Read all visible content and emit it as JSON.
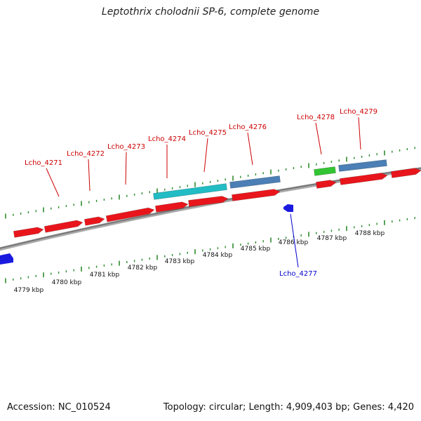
{
  "title": "Leptothrix cholodnii SP-6, complete genome",
  "footer": {
    "accession": "Accession: NC_010524",
    "summary": "Topology: circular; Length: 4,909,403 bp; Genes: 4,420"
  },
  "colors": {
    "backbone": "#808080",
    "tick": "#2e8b2e",
    "cds_forward": "#e8161c",
    "cds_reverse": "#1a1adf",
    "misc_feature": "#22bcc4",
    "steel_feature": "#4b7fb5",
    "green_feature": "#33c433",
    "label_forward": "#cc0000",
    "label_reverse": "#0000cc"
  },
  "scale_labels": [
    "4779 kbp",
    "4780 kbp",
    "4781 kbp",
    "4782 kbp",
    "4783 kbp",
    "4784 kbp",
    "4785 kbp",
    "4786 kbp",
    "4787 kbp",
    "4788 kbp"
  ],
  "gene_labels": [
    {
      "name": "Lcho_4271",
      "strand": "forward"
    },
    {
      "name": "Lcho_4272",
      "strand": "forward"
    },
    {
      "name": "Lcho_4273",
      "strand": "forward"
    },
    {
      "name": "Lcho_4274",
      "strand": "forward"
    },
    {
      "name": "Lcho_4275",
      "strand": "forward"
    },
    {
      "name": "Lcho_4276",
      "strand": "forward"
    },
    {
      "name": "Lcho_4277",
      "strand": "reverse"
    },
    {
      "name": "Lcho_4278",
      "strand": "forward"
    },
    {
      "name": "Lcho_4279",
      "strand": "forward"
    }
  ]
}
